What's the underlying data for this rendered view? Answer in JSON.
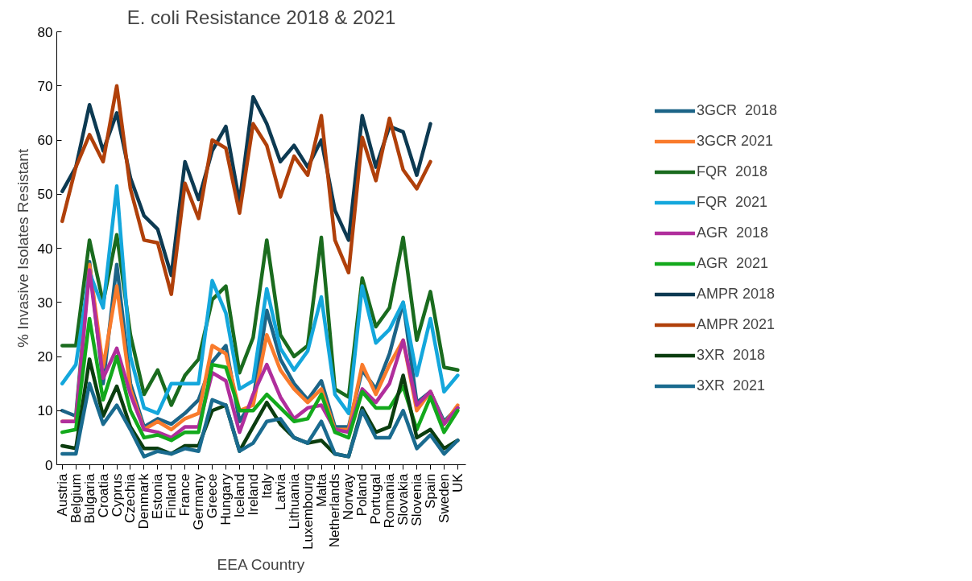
{
  "chart_data": {
    "type": "line",
    "title": "E. coli Resistance 2018 & 2021",
    "xlabel": "EEA Country",
    "ylabel": "% Invasive Isolates Resistant",
    "categories": [
      "Austria",
      "Belgium",
      "Bulgaria",
      "Croatia",
      "Cyprus",
      "Czechia",
      "Denmark",
      "Estonia",
      "Finland",
      "France",
      "Germany",
      "Greece",
      "Hungary",
      "Iceland",
      "Ireland",
      "Italy",
      "Latvia",
      "Lithuania",
      "Luxembourg",
      "Malta",
      "Netherlands",
      "Norway",
      "Poland",
      "Portugal",
      "Romania",
      "Slovakia",
      "Slovenia",
      "Spain",
      "Sweden",
      "UK"
    ],
    "ylim": [
      0,
      80
    ],
    "yticks": [
      0,
      10,
      20,
      30,
      40,
      50,
      60,
      70,
      80
    ],
    "grid": false,
    "legend": "right",
    "marker": "none",
    "line_style": "solid",
    "series": [
      {
        "name": "3GCR  2018",
        "color": "#1c6487",
        "values": [
          10,
          9,
          37.5,
          15,
          37,
          15,
          7,
          8.5,
          7.5,
          9.5,
          12,
          19,
          22,
          8,
          12,
          28.5,
          19.5,
          15,
          12,
          15.5,
          7,
          7,
          17.5,
          14,
          20.5,
          30,
          11.5,
          13.5,
          8,
          10.5
        ]
      },
      {
        "name": "3GCR 2021",
        "color": "#f97b2c",
        "values": [
          8,
          8,
          37,
          18,
          33,
          14,
          6.5,
          8,
          6.5,
          8.5,
          9.5,
          22,
          20.5,
          10,
          11,
          24,
          17.5,
          14,
          11.5,
          14,
          6.5,
          6.5,
          18.5,
          13,
          18.5,
          23,
          10,
          13.5,
          7.5,
          11
        ]
      },
      {
        "name": "FQR  2018",
        "color": "#1a6b1e",
        "values": [
          22,
          22,
          41.5,
          30,
          42.5,
          24,
          13,
          17.5,
          11,
          16.5,
          19.5,
          30.5,
          33,
          17,
          23.5,
          41.5,
          24,
          20,
          22,
          42,
          14,
          12.5,
          34.5,
          25.5,
          29,
          42,
          23,
          32,
          18,
          17.5
        ]
      },
      {
        "name": "FQR  2021",
        "color": "#14a7dc",
        "values": [
          15,
          18.5,
          35.5,
          29,
          51.5,
          20,
          10.5,
          9.5,
          15,
          15,
          15,
          34,
          28,
          14,
          15.5,
          32.5,
          21.5,
          17.5,
          21,
          31,
          13,
          9.5,
          33,
          22.5,
          25,
          30,
          16.5,
          27,
          13.5,
          16.5
        ]
      },
      {
        "name": "AGR  2018",
        "color": "#b02e9c",
        "values": [
          8,
          8,
          36,
          16,
          21.5,
          13,
          6.5,
          6,
          5,
          7,
          7,
          17,
          15.5,
          6,
          13,
          18.5,
          12.5,
          8.5,
          10.5,
          11,
          6.5,
          6,
          14,
          11.5,
          15,
          23,
          11,
          13.5,
          7.5,
          10.5
        ]
      },
      {
        "name": "AGR  2021",
        "color": "#13a91c",
        "values": [
          6,
          6.5,
          27,
          12,
          20,
          10,
          5,
          5.5,
          4.5,
          6,
          6,
          18.5,
          18,
          10,
          10,
          13,
          10.5,
          8,
          8.5,
          13,
          6,
          5,
          13.5,
          10.5,
          10.5,
          14.5,
          6.5,
          12.5,
          6,
          10
        ]
      },
      {
        "name": "AMPR 2018",
        "color": "#0d3a52",
        "values": [
          50.5,
          55,
          66.5,
          58,
          65,
          53,
          46,
          43.5,
          35,
          56,
          49,
          58,
          62.5,
          48.5,
          68,
          63,
          56,
          59,
          55,
          60,
          47,
          41.5,
          64.5,
          55,
          62.5,
          61.5,
          53.5,
          63,
          null,
          null
        ]
      },
      {
        "name": "AMPR 2021",
        "color": "#b0400a",
        "values": [
          45,
          55,
          61,
          56,
          70,
          51,
          41.5,
          41,
          31.5,
          52,
          45.5,
          60,
          58.5,
          46.5,
          63,
          59,
          49.5,
          57,
          53.5,
          64.5,
          41.5,
          35.5,
          60.5,
          52.5,
          64,
          54.5,
          51,
          56,
          null,
          null
        ]
      },
      {
        "name": "3XR  2018",
        "color": "#0b3d0f",
        "values": [
          3.5,
          3,
          19.5,
          9,
          14.5,
          7,
          3,
          3,
          2,
          3.5,
          3.5,
          10,
          11,
          2.5,
          7,
          11.5,
          7.5,
          5,
          4,
          4.5,
          2,
          1.5,
          10.5,
          6,
          7,
          16.5,
          5,
          6.5,
          3,
          4.5
        ]
      },
      {
        "name": "3XR  2021",
        "color": "#1a6b8f",
        "values": [
          2,
          2,
          15,
          7.5,
          11,
          6.5,
          1.5,
          2.5,
          2,
          3,
          2.5,
          12,
          11,
          2.5,
          4,
          8,
          8.5,
          5,
          4,
          8,
          2,
          1.5,
          10,
          5,
          5,
          10,
          3,
          5.5,
          2,
          4.5
        ]
      }
    ]
  }
}
